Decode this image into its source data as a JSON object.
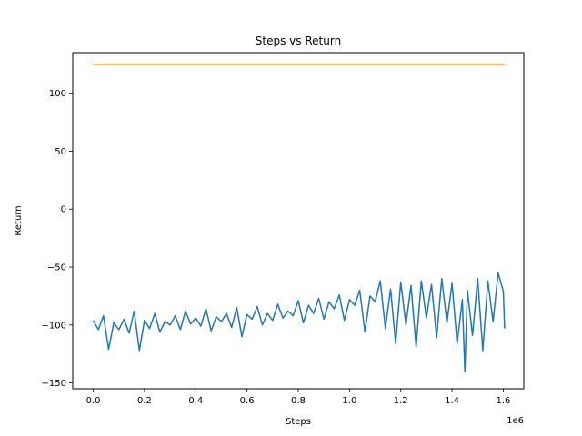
{
  "chart_data": {
    "type": "line",
    "title": "Steps vs Return",
    "xlabel": "Steps",
    "ylabel": "Return",
    "x_offset_label": "1e6",
    "xlim": [
      -0.08,
      1.68
    ],
    "ylim": [
      -155,
      135
    ],
    "x_ticks": [
      0.0,
      0.2,
      0.4,
      0.6,
      0.8,
      1.0,
      1.2,
      1.4,
      1.6
    ],
    "x_tick_labels": [
      "0.0",
      "0.2",
      "0.4",
      "0.6",
      "0.8",
      "1.0",
      "1.2",
      "1.4",
      "1.6"
    ],
    "y_ticks": [
      -150,
      -100,
      -50,
      0,
      50,
      100
    ],
    "y_tick_labels": [
      "−150",
      "−100",
      "−50",
      "0",
      "50",
      "100"
    ],
    "grid": false,
    "series": [
      {
        "color": "#1f77b4",
        "x": [
          0.0,
          0.02,
          0.04,
          0.06,
          0.08,
          0.1,
          0.12,
          0.14,
          0.16,
          0.18,
          0.2,
          0.22,
          0.24,
          0.26,
          0.28,
          0.3,
          0.32,
          0.34,
          0.36,
          0.38,
          0.4,
          0.42,
          0.44,
          0.46,
          0.48,
          0.5,
          0.52,
          0.54,
          0.56,
          0.58,
          0.6,
          0.62,
          0.64,
          0.66,
          0.68,
          0.7,
          0.72,
          0.74,
          0.76,
          0.78,
          0.8,
          0.82,
          0.84,
          0.86,
          0.88,
          0.9,
          0.92,
          0.94,
          0.96,
          0.98,
          1.0,
          1.02,
          1.04,
          1.06,
          1.08,
          1.1,
          1.12,
          1.14,
          1.16,
          1.18,
          1.2,
          1.22,
          1.24,
          1.26,
          1.28,
          1.3,
          1.32,
          1.34,
          1.36,
          1.38,
          1.4,
          1.42,
          1.44,
          1.45,
          1.46,
          1.48,
          1.5,
          1.52,
          1.54,
          1.56,
          1.58,
          1.6,
          1.605
        ],
        "y": [
          -96,
          -104,
          -92,
          -121,
          -98,
          -104,
          -95,
          -107,
          -88,
          -122,
          -96,
          -103,
          -90,
          -106,
          -97,
          -100,
          -92,
          -104,
          -88,
          -99,
          -94,
          -101,
          -86,
          -105,
          -93,
          -97,
          -90,
          -102,
          -85,
          -110,
          -91,
          -95,
          -84,
          -100,
          -90,
          -96,
          -82,
          -94,
          -88,
          -92,
          -79,
          -98,
          -83,
          -90,
          -77,
          -95,
          -80,
          -86,
          -74,
          -96,
          -78,
          -83,
          -70,
          -106,
          -75,
          -80,
          -62,
          -103,
          -69,
          -116,
          -63,
          -100,
          -66,
          -119,
          -62,
          -94,
          -65,
          -111,
          -60,
          -98,
          -64,
          -116,
          -78,
          -140,
          -70,
          -109,
          -60,
          -122,
          -62,
          -97,
          -55,
          -71,
          -103
        ]
      },
      {
        "color": "#ff7f0e",
        "x": [
          0.0,
          1.605
        ],
        "y": [
          125,
          125
        ]
      }
    ]
  }
}
